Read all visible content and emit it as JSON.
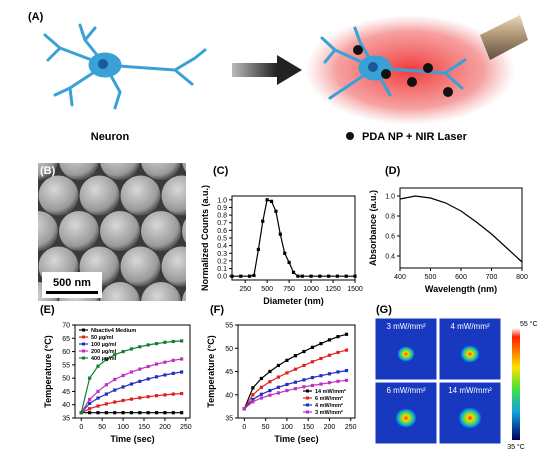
{
  "panel_a": {
    "label": "(A)",
    "left_label": "Neuron",
    "right_label": "PDA NP + NIR Laser"
  },
  "panel_b": {
    "label": "(B)",
    "scale_bar": "500 nm"
  },
  "chart_data": [
    {
      "type": "line",
      "label": "(C)",
      "x_label": "Diameter (nm)",
      "y_label": "Normalized Counts (a.u.)",
      "color": "#000000",
      "markers": true,
      "x": [
        100,
        200,
        300,
        350,
        400,
        450,
        500,
        550,
        600,
        650,
        700,
        750,
        800,
        850,
        900,
        1000,
        1100,
        1200,
        1300,
        1400,
        1500
      ],
      "values": [
        0,
        0,
        0,
        0.01,
        0.35,
        0.72,
        1.0,
        0.98,
        0.85,
        0.55,
        0.3,
        0.18,
        0.05,
        0,
        0,
        0,
        0,
        0,
        0,
        0,
        0
      ],
      "xlim": [
        100,
        1500
      ],
      "xticks": [
        250,
        500,
        750,
        1000,
        1250,
        1500
      ],
      "ylim": [
        -0.05,
        1.05
      ],
      "yticks": [
        {
          "value": 0,
          "label": "0.0"
        },
        0.1,
        0.2,
        0.3,
        0.4,
        0.5,
        0.6,
        0.7,
        0.8,
        0.9,
        {
          "value": 1,
          "label": "1.0"
        }
      ]
    },
    {
      "type": "line",
      "label": "(D)",
      "x_label": "Wavelength (nm)",
      "y_label": "Absorbance (a.u.)",
      "color": "#000000",
      "markers": false,
      "x": [
        400,
        450,
        500,
        550,
        600,
        650,
        700,
        750,
        800
      ],
      "values": [
        0.97,
        1.0,
        0.98,
        0.93,
        0.85,
        0.74,
        0.62,
        0.48,
        0.34
      ],
      "xlim": [
        400,
        800
      ],
      "xticks": [
        400,
        500,
        600,
        700,
        800
      ],
      "ylim": [
        0.28,
        1.08
      ],
      "yticks": [
        0.4,
        0.6,
        0.8,
        {
          "value": 1,
          "label": "1.0"
        }
      ]
    },
    {
      "type": "multiline",
      "label": "(E)",
      "x_label": "Time (sec)",
      "y_label": "Temperature (°C)",
      "legend": "upper left",
      "x": [
        0,
        20,
        40,
        60,
        80,
        100,
        120,
        140,
        160,
        180,
        200,
        220,
        240
      ],
      "series": [
        {
          "name": "Nbactiv4 Medium",
          "color": "#000000",
          "values": [
            37,
            37,
            37,
            37,
            37,
            37,
            37,
            37,
            37,
            37,
            37,
            37,
            37
          ]
        },
        {
          "name": "50 µg/ml",
          "color": "#e02020",
          "values": [
            37,
            38.5,
            39.5,
            40.3,
            41,
            41.6,
            42.1,
            42.6,
            43,
            43.4,
            43.7,
            44,
            44.2
          ]
        },
        {
          "name": "100 µg/ml",
          "color": "#2030c0",
          "values": [
            37,
            40.5,
            42.5,
            44,
            45.5,
            46.7,
            47.8,
            48.8,
            49.7,
            50.5,
            51.2,
            51.8,
            52.3
          ]
        },
        {
          "name": "200 µg/ml",
          "color": "#c030c0",
          "values": [
            37,
            42,
            45,
            47.5,
            49.5,
            51,
            52.3,
            53.4,
            54.4,
            55.3,
            56,
            56.7,
            57.2
          ]
        },
        {
          "name": "400 µg/ml",
          "color": "#108030",
          "values": [
            37,
            50,
            54.5,
            57,
            58.8,
            60,
            61,
            61.8,
            62.5,
            63,
            63.5,
            63.8,
            64
          ]
        }
      ],
      "xlim": [
        -15,
        260
      ],
      "xticks": [
        0,
        50,
        100,
        150,
        200,
        250
      ],
      "ylim": [
        35,
        70
      ],
      "yticks": [
        35,
        40,
        45,
        50,
        55,
        60,
        65,
        70
      ]
    },
    {
      "type": "multiline",
      "label": "(F)",
      "x_label": "Time (sec)",
      "y_label": "Temperature (°C)",
      "legend": "lower right",
      "x": [
        0,
        20,
        40,
        60,
        80,
        100,
        120,
        140,
        160,
        180,
        200,
        220,
        240
      ],
      "series": [
        {
          "name": "14 mW/mm²",
          "color": "#000000",
          "values": [
            37,
            41.5,
            43.5,
            45,
            46.3,
            47.4,
            48.4,
            49.3,
            50.2,
            51,
            51.8,
            52.5,
            53
          ]
        },
        {
          "name": "6 mW/mm²",
          "color": "#e02020",
          "values": [
            37,
            40,
            41.6,
            42.8,
            43.8,
            44.7,
            45.5,
            46.3,
            47.1,
            47.8,
            48.5,
            49.1,
            49.6
          ]
        },
        {
          "name": "4 mW/mm²",
          "color": "#2030c0",
          "values": [
            37,
            39,
            40.1,
            40.9,
            41.6,
            42.2,
            42.7,
            43.2,
            43.7,
            44.1,
            44.5,
            44.9,
            45.2
          ]
        },
        {
          "name": "3 mW/mm²",
          "color": "#c030c0",
          "values": [
            37,
            38.5,
            39.3,
            39.9,
            40.4,
            40.9,
            41.3,
            41.7,
            42,
            42.3,
            42.6,
            42.9,
            43.1
          ]
        }
      ],
      "xlim": [
        -15,
        260
      ],
      "xticks": [
        0,
        50,
        100,
        150,
        200,
        250
      ],
      "ylim": [
        35,
        55
      ],
      "yticks": [
        35,
        40,
        45,
        50,
        55
      ]
    }
  ],
  "panel_g": {
    "label": "(G)",
    "images": [
      "3 mW/mm²",
      "4 mW/mm²",
      "6 mW/mm²",
      "14 mW/mm²"
    ],
    "scale_max": "55 °C",
    "scale_min": "35 °C"
  }
}
